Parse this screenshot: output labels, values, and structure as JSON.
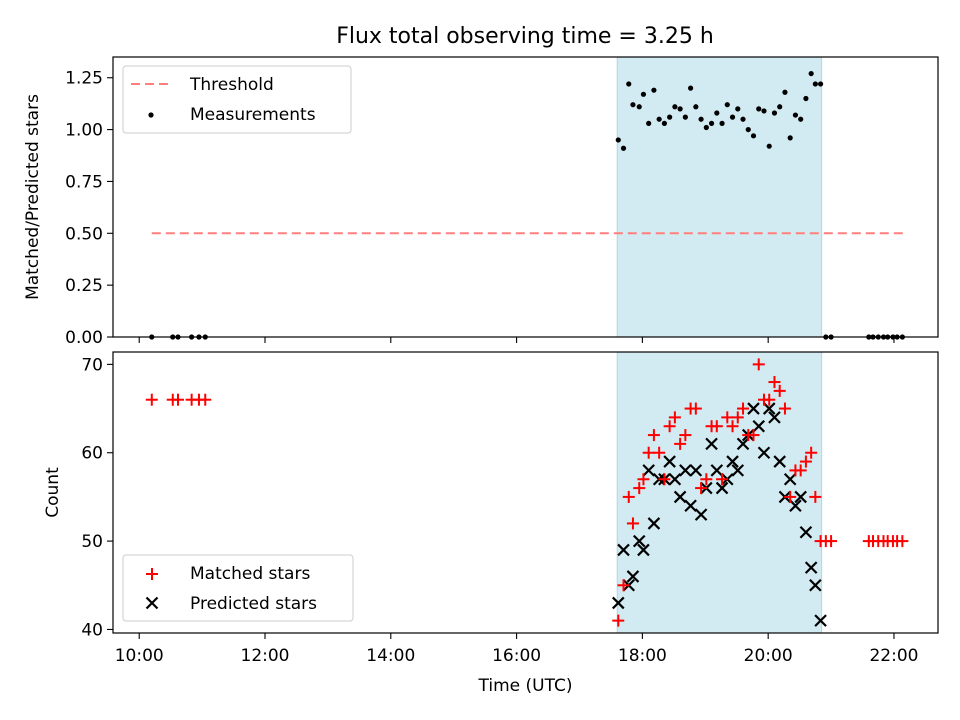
{
  "chart_data": {
    "title": "Flux total observing time = 3.25 h",
    "shaded_region": {
      "x": [
        "17:36",
        "20:51"
      ],
      "color": "#add8e6"
    },
    "x_axis": {
      "label": "Time (UTC)",
      "range": [
        "09:35",
        "22:42"
      ],
      "ticks": [
        "10:00",
        "12:00",
        "14:00",
        "16:00",
        "18:00",
        "20:00",
        "22:00"
      ]
    },
    "panels": [
      {
        "type": "scatter",
        "ylabel": "Matched/Predicted stars",
        "ylim": [
          0,
          1.35
        ],
        "yticks": [
          "0.00",
          "0.25",
          "0.50",
          "0.75",
          "1.00",
          "1.25"
        ],
        "legend_position": "upper-left",
        "threshold": {
          "name": "Threshold",
          "value": 0.5,
          "x": [
            "10:12",
            "22:09"
          ],
          "color": "#ff7f7f"
        },
        "series": [
          {
            "name": "Measurements",
            "color": "#000000",
            "marker": "dot",
            "points": [
              [
                "10:12",
                0
              ],
              [
                "10:32",
                0
              ],
              [
                "10:37",
                0
              ],
              [
                "10:50",
                0
              ],
              [
                "10:57",
                0
              ],
              [
                "11:03",
                0
              ],
              [
                "17:37",
                0.95
              ],
              [
                "17:42",
                0.91
              ],
              [
                "17:47",
                1.22
              ],
              [
                "17:51",
                1.12
              ],
              [
                "17:57",
                1.11
              ],
              [
                "18:01",
                1.17
              ],
              [
                "18:06",
                1.03
              ],
              [
                "18:11",
                1.19
              ],
              [
                "18:16",
                1.05
              ],
              [
                "18:21",
                1.03
              ],
              [
                "18:26",
                1.06
              ],
              [
                "18:31",
                1.11
              ],
              [
                "18:36",
                1.1
              ],
              [
                "18:41",
                1.06
              ],
              [
                "18:46",
                1.2
              ],
              [
                "18:51",
                1.11
              ],
              [
                "18:56",
                1.05
              ],
              [
                "19:01",
                1.01
              ],
              [
                "19:06",
                1.03
              ],
              [
                "19:11",
                1.08
              ],
              [
                "19:16",
                1.03
              ],
              [
                "19:21",
                1.12
              ],
              [
                "19:26",
                1.06
              ],
              [
                "19:31",
                1.1
              ],
              [
                "19:36",
                1.05
              ],
              [
                "19:41",
                1.0
              ],
              [
                "19:46",
                0.97
              ],
              [
                "19:51",
                1.1
              ],
              [
                "19:56",
                1.09
              ],
              [
                "20:01",
                0.92
              ],
              [
                "20:06",
                1.08
              ],
              [
                "20:11",
                1.11
              ],
              [
                "20:16",
                1.18
              ],
              [
                "20:21",
                0.96
              ],
              [
                "20:26",
                1.07
              ],
              [
                "20:31",
                1.05
              ],
              [
                "20:36",
                1.15
              ],
              [
                "20:41",
                1.27
              ],
              [
                "20:45",
                1.22
              ],
              [
                "20:50",
                1.22
              ],
              [
                "20:55",
                0
              ],
              [
                "21:00",
                0
              ],
              [
                "21:36",
                0
              ],
              [
                "21:40",
                0
              ],
              [
                "21:45",
                0
              ],
              [
                "21:50",
                0
              ],
              [
                "21:54",
                0
              ],
              [
                "21:59",
                0
              ],
              [
                "22:03",
                0
              ],
              [
                "22:08",
                0
              ]
            ]
          }
        ]
      },
      {
        "type": "scatter",
        "ylabel": "Count",
        "ylim": [
          39.6,
          71.4
        ],
        "yticks": [
          "40",
          "50",
          "60",
          "70"
        ],
        "legend_position": "lower-left",
        "series": [
          {
            "name": "Matched stars",
            "color": "#ff0000",
            "marker": "plus",
            "points": [
              [
                "10:12",
                66
              ],
              [
                "10:32",
                66
              ],
              [
                "10:37",
                66
              ],
              [
                "10:50",
                66
              ],
              [
                "10:57",
                66
              ],
              [
                "11:03",
                66
              ],
              [
                "17:37",
                41
              ],
              [
                "17:42",
                45
              ],
              [
                "17:47",
                55
              ],
              [
                "17:51",
                52
              ],
              [
                "17:57",
                56
              ],
              [
                "18:01",
                57
              ],
              [
                "18:06",
                60
              ],
              [
                "18:11",
                62
              ],
              [
                "18:16",
                60
              ],
              [
                "18:21",
                57
              ],
              [
                "18:26",
                63
              ],
              [
                "18:31",
                64
              ],
              [
                "18:36",
                61
              ],
              [
                "18:41",
                62
              ],
              [
                "18:46",
                65
              ],
              [
                "18:51",
                65
              ],
              [
                "18:56",
                56
              ],
              [
                "19:01",
                57
              ],
              [
                "19:06",
                63
              ],
              [
                "19:11",
                63
              ],
              [
                "19:16",
                57
              ],
              [
                "19:21",
                64
              ],
              [
                "19:26",
                63
              ],
              [
                "19:31",
                64
              ],
              [
                "19:36",
                65
              ],
              [
                "19:41",
                62
              ],
              [
                "19:46",
                62
              ],
              [
                "19:51",
                70
              ],
              [
                "19:56",
                66
              ],
              [
                "20:01",
                66
              ],
              [
                "20:06",
                68
              ],
              [
                "20:11",
                67
              ],
              [
                "20:16",
                65
              ],
              [
                "20:21",
                55
              ],
              [
                "20:26",
                58
              ],
              [
                "20:31",
                58
              ],
              [
                "20:36",
                59
              ],
              [
                "20:41",
                60
              ],
              [
                "20:45",
                55
              ],
              [
                "20:50",
                50
              ],
              [
                "20:55",
                50
              ],
              [
                "21:00",
                50
              ],
              [
                "21:36",
                50
              ],
              [
                "21:40",
                50
              ],
              [
                "21:45",
                50
              ],
              [
                "21:50",
                50
              ],
              [
                "21:54",
                50
              ],
              [
                "21:59",
                50
              ],
              [
                "22:03",
                50
              ],
              [
                "22:08",
                50
              ]
            ]
          },
          {
            "name": "Predicted stars",
            "color": "#000000",
            "marker": "x",
            "points": [
              [
                "17:37",
                43
              ],
              [
                "17:42",
                49
              ],
              [
                "17:47",
                45
              ],
              [
                "17:51",
                46
              ],
              [
                "17:57",
                50
              ],
              [
                "18:01",
                49
              ],
              [
                "18:06",
                58
              ],
              [
                "18:11",
                52
              ],
              [
                "18:16",
                57
              ],
              [
                "18:21",
                57
              ],
              [
                "18:26",
                59
              ],
              [
                "18:31",
                57
              ],
              [
                "18:36",
                55
              ],
              [
                "18:41",
                58
              ],
              [
                "18:46",
                54
              ],
              [
                "18:51",
                58
              ],
              [
                "18:56",
                53
              ],
              [
                "19:01",
                56
              ],
              [
                "19:06",
                61
              ],
              [
                "19:11",
                58
              ],
              [
                "19:16",
                56
              ],
              [
                "19:21",
                57
              ],
              [
                "19:26",
                59
              ],
              [
                "19:31",
                58
              ],
              [
                "19:36",
                61
              ],
              [
                "19:41",
                62
              ],
              [
                "19:46",
                65
              ],
              [
                "19:51",
                63
              ],
              [
                "19:56",
                60
              ],
              [
                "20:01",
                65
              ],
              [
                "20:06",
                64
              ],
              [
                "20:11",
                59
              ],
              [
                "20:16",
                55
              ],
              [
                "20:21",
                57
              ],
              [
                "20:26",
                54
              ],
              [
                "20:31",
                55
              ],
              [
                "20:36",
                51
              ],
              [
                "20:41",
                47
              ],
              [
                "20:45",
                45
              ],
              [
                "20:50",
                41
              ]
            ]
          }
        ]
      }
    ]
  }
}
